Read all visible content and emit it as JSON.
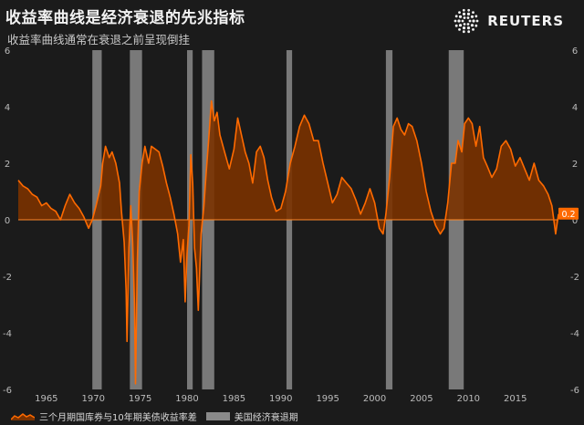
{
  "header": {
    "title": "收益率曲线是经济衰退的先兆指标",
    "subtitle": "收益率曲线通常在衰退之前呈现倒挂",
    "brand": "REUTERS"
  },
  "legend": {
    "spread_label": "三个月期国库券与10年期美债收益率差",
    "recession_label": "美国经济衰退期"
  },
  "colors": {
    "background": "#1b1b1b",
    "spread_line": "#ff6a00",
    "spread_fill": "#7a3200",
    "recession": "#8a8a8a",
    "zero_line": "#ff8a2a",
    "end_badge": "#ff6a00"
  },
  "chart_data": {
    "type": "area",
    "xlim": [
      1962,
      2019.6
    ],
    "ylim": [
      -6,
      6
    ],
    "x_ticks": [
      "1965",
      "1970",
      "1975",
      "1980",
      "1985",
      "1990",
      "1995",
      "2000",
      "2005",
      "2010",
      "2015"
    ],
    "y_ticks_left": [
      "6",
      "4",
      "2",
      "0",
      "-2",
      "-4",
      "-6"
    ],
    "y_ticks_right": [
      "6",
      "4",
      "2",
      "0",
      "-2",
      "-4",
      "-6"
    ],
    "end_value_label": "0.2",
    "recessions": [
      {
        "start": 1969.9,
        "end": 1970.9
      },
      {
        "start": 1973.9,
        "end": 1975.2
      },
      {
        "start": 1980.0,
        "end": 1980.6
      },
      {
        "start": 1981.6,
        "end": 1982.9
      },
      {
        "start": 1990.6,
        "end": 1991.2
      },
      {
        "start": 2001.2,
        "end": 2001.9
      },
      {
        "start": 2007.9,
        "end": 2009.5
      }
    ],
    "series": [
      {
        "values": [
          [
            1962.0,
            1.4
          ],
          [
            1962.5,
            1.2
          ],
          [
            1963.0,
            1.1
          ],
          [
            1963.5,
            0.9
          ],
          [
            1964.0,
            0.8
          ],
          [
            1964.5,
            0.5
          ],
          [
            1965.0,
            0.6
          ],
          [
            1965.5,
            0.4
          ],
          [
            1966.0,
            0.3
          ],
          [
            1966.5,
            0.0
          ],
          [
            1967.0,
            0.5
          ],
          [
            1967.5,
            0.9
          ],
          [
            1968.0,
            0.6
          ],
          [
            1968.5,
            0.4
          ],
          [
            1969.0,
            0.1
          ],
          [
            1969.5,
            -0.3
          ],
          [
            1969.9,
            0.0
          ],
          [
            1970.3,
            0.5
          ],
          [
            1970.8,
            1.2
          ],
          [
            1971.0,
            2.0
          ],
          [
            1971.3,
            2.6
          ],
          [
            1971.7,
            2.2
          ],
          [
            1972.0,
            2.4
          ],
          [
            1972.4,
            2.0
          ],
          [
            1972.8,
            1.3
          ],
          [
            1973.0,
            0.3
          ],
          [
            1973.3,
            -0.8
          ],
          [
            1973.5,
            -2.5
          ],
          [
            1973.6,
            -4.3
          ],
          [
            1973.8,
            -1.0
          ],
          [
            1974.0,
            0.5
          ],
          [
            1974.2,
            -0.8
          ],
          [
            1974.4,
            -3.0
          ],
          [
            1974.5,
            -5.8
          ],
          [
            1974.7,
            -1.5
          ],
          [
            1974.9,
            1.0
          ],
          [
            1975.2,
            2.0
          ],
          [
            1975.5,
            2.6
          ],
          [
            1975.9,
            2.0
          ],
          [
            1976.2,
            2.6
          ],
          [
            1976.6,
            2.5
          ],
          [
            1977.0,
            2.4
          ],
          [
            1977.4,
            1.9
          ],
          [
            1977.8,
            1.3
          ],
          [
            1978.2,
            0.8
          ],
          [
            1978.6,
            0.2
          ],
          [
            1979.0,
            -0.5
          ],
          [
            1979.3,
            -1.5
          ],
          [
            1979.6,
            -0.7
          ],
          [
            1979.8,
            -2.9
          ],
          [
            1980.0,
            -1.2
          ],
          [
            1980.2,
            -0.2
          ],
          [
            1980.4,
            2.3
          ],
          [
            1980.6,
            1.3
          ],
          [
            1980.8,
            -1.0
          ],
          [
            1981.0,
            -1.7
          ],
          [
            1981.2,
            -3.2
          ],
          [
            1981.5,
            -0.5
          ],
          [
            1981.8,
            0.5
          ],
          [
            1982.0,
            1.5
          ],
          [
            1982.3,
            2.8
          ],
          [
            1982.6,
            4.2
          ],
          [
            1982.9,
            3.5
          ],
          [
            1983.2,
            3.8
          ],
          [
            1983.5,
            3.0
          ],
          [
            1984.0,
            2.4
          ],
          [
            1984.5,
            1.8
          ],
          [
            1985.0,
            2.5
          ],
          [
            1985.4,
            3.6
          ],
          [
            1985.8,
            3.0
          ],
          [
            1986.2,
            2.4
          ],
          [
            1986.6,
            2.0
          ],
          [
            1987.0,
            1.3
          ],
          [
            1987.4,
            2.4
          ],
          [
            1987.8,
            2.6
          ],
          [
            1988.2,
            2.2
          ],
          [
            1988.6,
            1.4
          ],
          [
            1989.0,
            0.8
          ],
          [
            1989.5,
            0.3
          ],
          [
            1990.0,
            0.4
          ],
          [
            1990.5,
            1.0
          ],
          [
            1991.0,
            2.0
          ],
          [
            1991.5,
            2.6
          ],
          [
            1992.0,
            3.3
          ],
          [
            1992.5,
            3.7
          ],
          [
            1993.0,
            3.4
          ],
          [
            1993.5,
            2.8
          ],
          [
            1994.0,
            2.8
          ],
          [
            1994.5,
            2.0
          ],
          [
            1995.0,
            1.3
          ],
          [
            1995.5,
            0.6
          ],
          [
            1996.0,
            0.9
          ],
          [
            1996.5,
            1.5
          ],
          [
            1997.0,
            1.3
          ],
          [
            1997.5,
            1.1
          ],
          [
            1998.0,
            0.7
          ],
          [
            1998.5,
            0.2
          ],
          [
            1999.0,
            0.6
          ],
          [
            1999.5,
            1.1
          ],
          [
            2000.0,
            0.6
          ],
          [
            2000.5,
            -0.3
          ],
          [
            2000.9,
            -0.5
          ],
          [
            2001.2,
            0.2
          ],
          [
            2001.6,
            1.5
          ],
          [
            2002.0,
            3.3
          ],
          [
            2002.4,
            3.6
          ],
          [
            2002.8,
            3.2
          ],
          [
            2003.2,
            3.0
          ],
          [
            2003.6,
            3.4
          ],
          [
            2004.0,
            3.3
          ],
          [
            2004.5,
            2.8
          ],
          [
            2005.0,
            2.0
          ],
          [
            2005.5,
            1.0
          ],
          [
            2006.0,
            0.3
          ],
          [
            2006.5,
            -0.2
          ],
          [
            2007.0,
            -0.5
          ],
          [
            2007.4,
            -0.3
          ],
          [
            2007.8,
            0.6
          ],
          [
            2008.2,
            2.0
          ],
          [
            2008.6,
            2.0
          ],
          [
            2008.9,
            2.8
          ],
          [
            2009.3,
            2.4
          ],
          [
            2009.6,
            3.4
          ],
          [
            2010.0,
            3.6
          ],
          [
            2010.4,
            3.4
          ],
          [
            2010.8,
            2.6
          ],
          [
            2011.2,
            3.3
          ],
          [
            2011.6,
            2.2
          ],
          [
            2012.0,
            1.9
          ],
          [
            2012.5,
            1.5
          ],
          [
            2013.0,
            1.8
          ],
          [
            2013.5,
            2.6
          ],
          [
            2014.0,
            2.8
          ],
          [
            2014.5,
            2.5
          ],
          [
            2015.0,
            1.9
          ],
          [
            2015.5,
            2.2
          ],
          [
            2016.0,
            1.8
          ],
          [
            2016.5,
            1.4
          ],
          [
            2017.0,
            2.0
          ],
          [
            2017.5,
            1.4
          ],
          [
            2018.0,
            1.2
          ],
          [
            2018.5,
            0.9
          ],
          [
            2018.9,
            0.5
          ],
          [
            2019.1,
            0.0
          ],
          [
            2019.3,
            -0.5
          ],
          [
            2019.6,
            0.2
          ]
        ]
      }
    ]
  }
}
